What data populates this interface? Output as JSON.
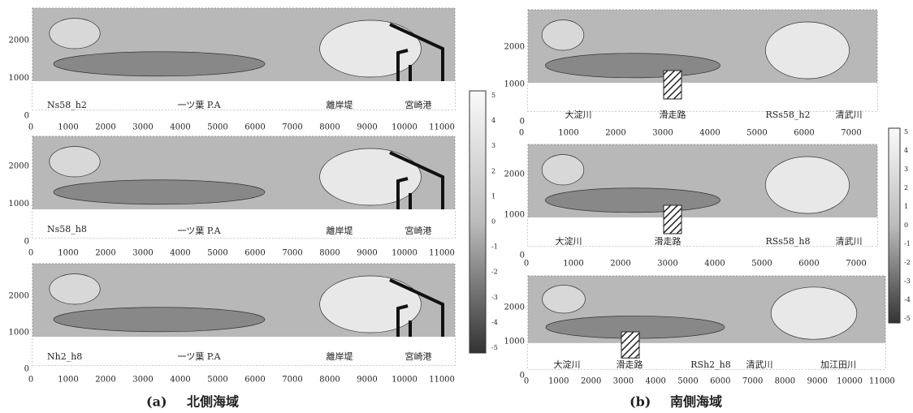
{
  "figure_a": {
    "caption_label": "(a)",
    "caption": "北側海域",
    "plots": [
      {
        "labels": [
          "Ns58_h2",
          "一ツ葉 P.A",
          "離岸堤",
          "宮崎港"
        ],
        "xticks": [
          0,
          1000,
          2000,
          3000,
          4000,
          5000,
          6000,
          7000,
          8000,
          9000,
          10000,
          11000
        ],
        "yticks": [
          0,
          1000,
          2000
        ]
      },
      {
        "labels": [
          "Ns58_h8",
          "一ツ葉 P.A",
          "離岸堤",
          "宮崎港"
        ],
        "xticks": [
          0,
          1000,
          2000,
          3000,
          4000,
          5000,
          6000,
          7000,
          8000,
          9000,
          10000,
          11000
        ],
        "yticks": [
          0,
          1000,
          2000
        ]
      },
      {
        "labels": [
          "Nh2_h8",
          "一ツ葉 P.A",
          "離岸堤",
          "宮崎港"
        ],
        "xticks": [
          0,
          1000,
          2000,
          3000,
          4000,
          5000,
          6000,
          7000,
          8000,
          9000,
          10000,
          11000
        ],
        "yticks": [
          0,
          1000,
          2000
        ]
      }
    ],
    "colorbar_ticks": [
      5,
      4,
      3,
      2,
      1,
      0,
      -1,
      -2,
      -3,
      -4,
      -5
    ]
  },
  "figure_b": {
    "caption_label": "(b)",
    "caption": "南側海域",
    "plots": [
      {
        "labels": [
          "大淀川",
          "滑走路",
          "RSs58_h2",
          "清武川"
        ],
        "xticks": [
          0,
          1000,
          2000,
          3000,
          4000,
          5000,
          6000,
          7000
        ],
        "yticks": [
          0,
          1000,
          2000
        ]
      },
      {
        "labels": [
          "大淀川",
          "滑走路",
          "RSs58_h8",
          "清武川"
        ],
        "xticks": [
          0,
          1000,
          2000,
          3000,
          4000,
          5000,
          6000,
          7000
        ],
        "yticks": [
          0,
          1000,
          2000
        ]
      },
      {
        "labels": [
          "大淀川",
          "滑走路",
          "RSh2_h8",
          "清武川",
          "加江田川"
        ],
        "xticks": [
          0,
          1000,
          2000,
          3000,
          4000,
          5000,
          6000,
          7000,
          8000,
          9000,
          10000,
          11000
        ],
        "yticks": [
          0,
          1000,
          2000
        ]
      }
    ],
    "colorbar_ticks": [
      5,
      4,
      3,
      2,
      1,
      0,
      -1,
      -2,
      -3,
      -4,
      -5
    ]
  }
}
